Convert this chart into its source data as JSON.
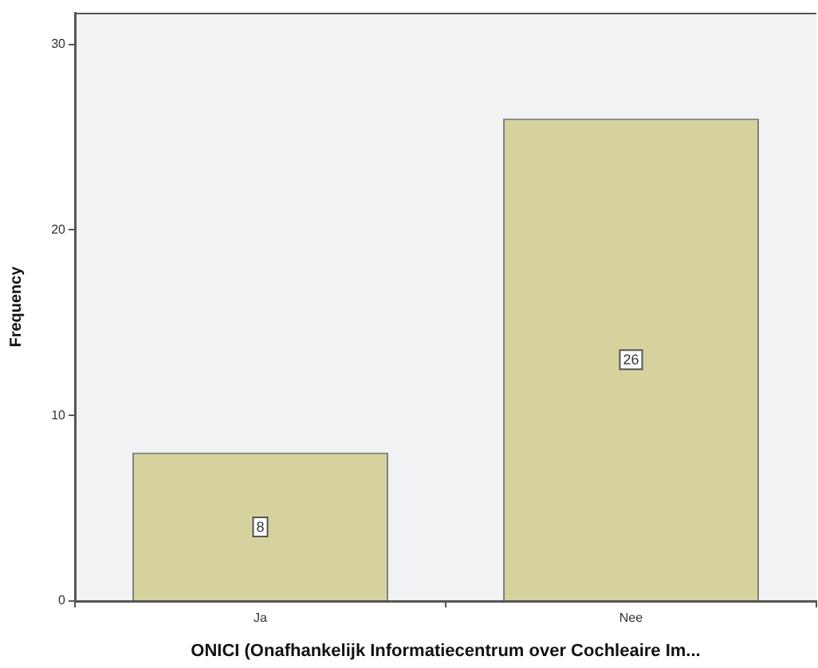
{
  "chart_data": {
    "type": "bar",
    "xlabel": "ONICI (Onafhankelijk Informatiecentrum over Cochleaire Im...",
    "ylabel": "Frequency",
    "categories": [
      "Ja",
      "Nee"
    ],
    "values": [
      8,
      26
    ],
    "color": "#d5d29e",
    "ylim": [
      0,
      31.7
    ],
    "yticks": [
      0,
      10,
      20,
      30
    ],
    "grid": false,
    "legend": false,
    "data_labels": true
  }
}
